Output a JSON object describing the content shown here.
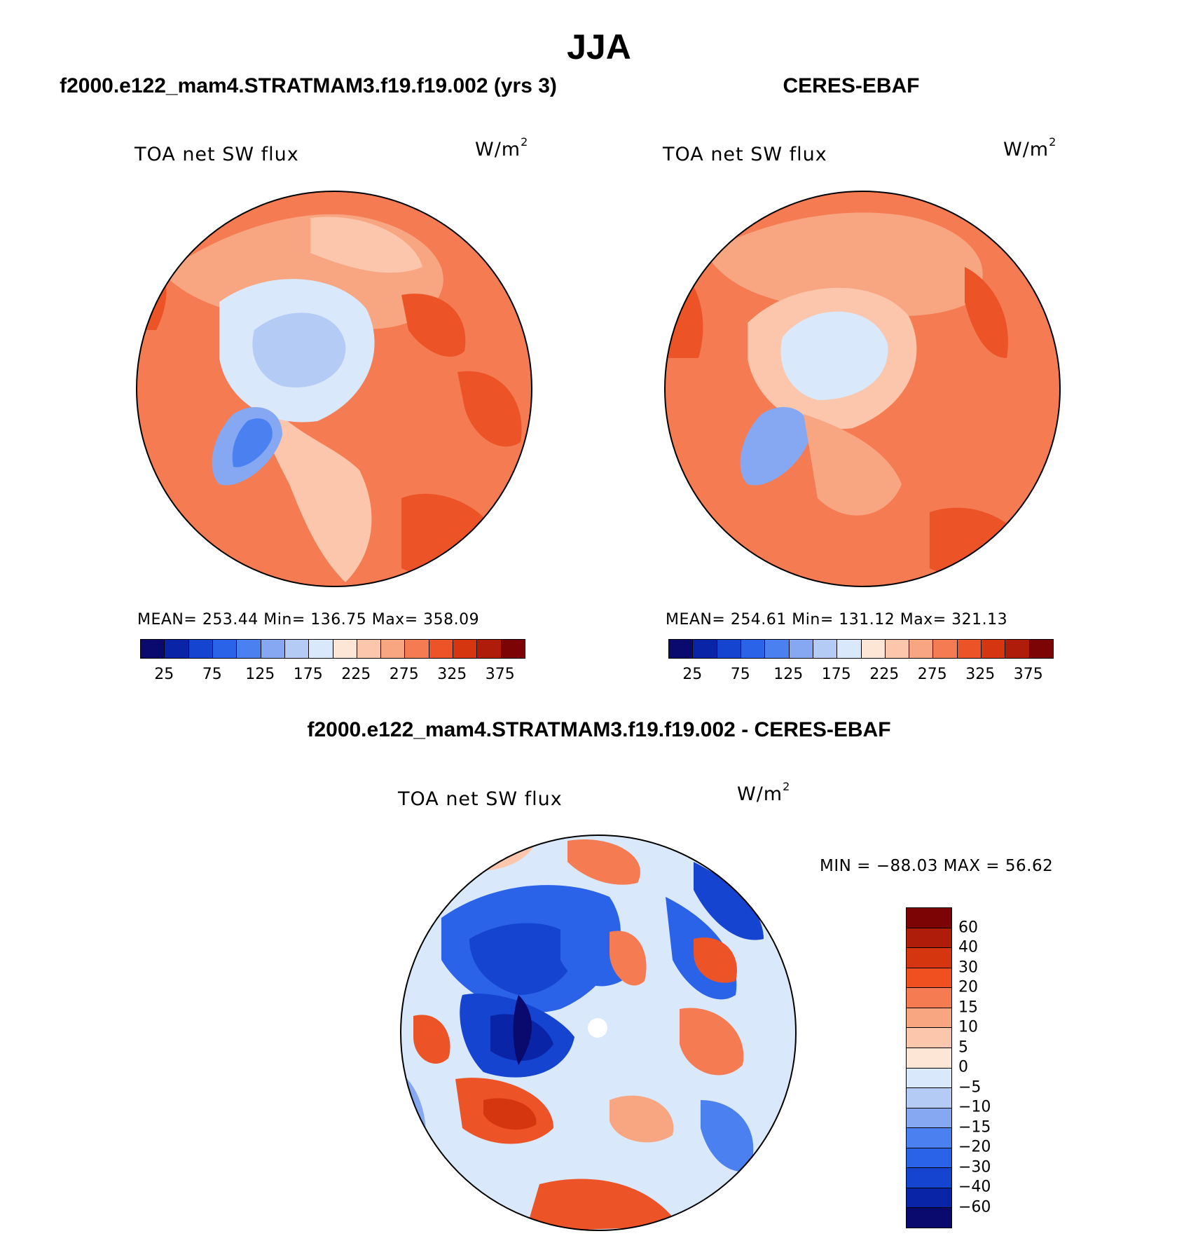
{
  "title": "JJA",
  "panels": [
    {
      "case": "f2000.e122_mam4.STRATMAM3.f19.f19.002 (yrs 3)",
      "variable": "TOA net SW flux",
      "units_base": "W/m",
      "units_exp": "2",
      "stats": "MEAN= 253.44   Min= 136.75   Max= 358.09",
      "projection": "north-polar-stereographic",
      "field": "model"
    },
    {
      "case": "CERES-EBAF",
      "variable": "TOA net SW flux",
      "units_base": "W/m",
      "units_exp": "2",
      "stats": "MEAN= 254.61   Min= 131.12   Max= 321.13",
      "projection": "north-polar-stereographic",
      "field": "observations"
    },
    {
      "case": "f2000.e122_mam4.STRATMAM3.f19.f19.002 - CERES-EBAF",
      "variable": "TOA net SW flux",
      "units_base": "W/m",
      "units_exp": "2",
      "stats": "MIN = −88.03 MAX =   56.62",
      "projection": "north-polar-stereographic",
      "field": "difference"
    }
  ],
  "abs_colorbar": {
    "colors": [
      "#0a0a6e",
      "#0a24a8",
      "#1444d0",
      "#2a62e8",
      "#4a80f0",
      "#86a8f2",
      "#b4cbf6",
      "#d9e8fb",
      "#fde6d6",
      "#fbc6ab",
      "#f8a582",
      "#f47b52",
      "#ec5326",
      "#d6360f",
      "#b01c0a",
      "#7d0404"
    ],
    "tick_labels": [
      "25",
      "75",
      "125",
      "175",
      "225",
      "275",
      "325",
      "375"
    ]
  },
  "diff_colorbar": {
    "colors": [
      "#7d0404",
      "#b01c0a",
      "#d6360f",
      "#f05020",
      "#f47b52",
      "#f8a582",
      "#fbc6ab",
      "#fde6d6",
      "#d9e8fb",
      "#b4cbf6",
      "#86a8f2",
      "#4a80f0",
      "#2a62e8",
      "#1444d0",
      "#0a24a8",
      "#0a0a6e"
    ],
    "tick_labels": [
      "60",
      "40",
      "30",
      "20",
      "15",
      "10",
      "5",
      "0",
      "−5",
      "−10",
      "−15",
      "−20",
      "−30",
      "−40",
      "−60"
    ]
  },
  "palette": {
    "land_blue": "#86a8f2",
    "ice_light": "#d9e8fb",
    "salmon": "#f8a582",
    "orange": "#f47b52",
    "red": "#ec5326",
    "peach": "#fbc6ab",
    "neg_dark": "#1444d0",
    "neg_mid": "#4a80f0",
    "pos_red": "#ec5326"
  }
}
